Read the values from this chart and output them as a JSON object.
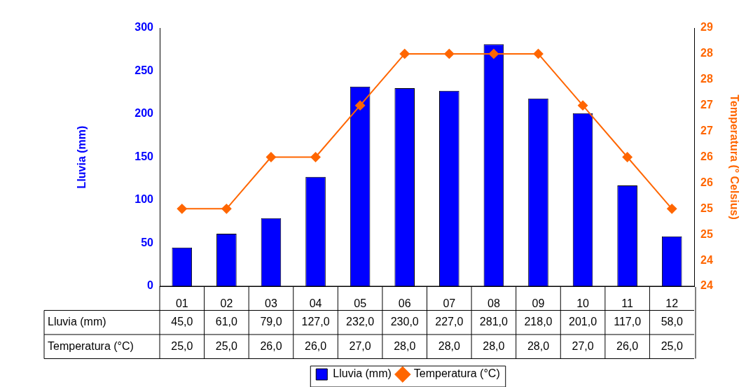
{
  "chart_data": {
    "type": "bar",
    "categories": [
      "01",
      "02",
      "03",
      "04",
      "05",
      "06",
      "07",
      "08",
      "09",
      "10",
      "11",
      "12"
    ],
    "ylabel": "Lluvia (mm)",
    "y2label": "Temperatura (° Celsius)",
    "ylim": [
      0,
      300
    ],
    "yticks": [
      0,
      50,
      100,
      150,
      200,
      250,
      300
    ],
    "y2lim": [
      23.5,
      28.5
    ],
    "y2ticks": [
      {
        "value": 23.5,
        "label": "24"
      },
      {
        "value": 24,
        "label": "24"
      },
      {
        "value": 24.5,
        "label": "25"
      },
      {
        "value": 25,
        "label": "25"
      },
      {
        "value": 25.5,
        "label": "26"
      },
      {
        "value": 26,
        "label": "26"
      },
      {
        "value": 26.5,
        "label": "27"
      },
      {
        "value": 27,
        "label": "27"
      },
      {
        "value": 27.5,
        "label": "28"
      },
      {
        "value": 28,
        "label": "28"
      },
      {
        "value": 28.5,
        "label": "29"
      }
    ],
    "legend": "bottom",
    "marker": "diamond",
    "series": [
      {
        "name": "Lluvia (mm)",
        "color": "#0000ff",
        "values": [
          45,
          61,
          79,
          127,
          232,
          230,
          227,
          281,
          218,
          201,
          117,
          58
        ],
        "value_labels": [
          "45,0",
          "61,0",
          "79,0",
          "127,0",
          "232,0",
          "230,0",
          "227,0",
          "281,0",
          "218,0",
          "201,0",
          "117,0",
          "58,0"
        ]
      },
      {
        "name": "Temperatura (°C)",
        "type": "line",
        "axis": "y2",
        "color": "#ff6600",
        "values": [
          25,
          25,
          26,
          26,
          27,
          28,
          28,
          28,
          28,
          27,
          26,
          25
        ],
        "value_labels": [
          "25,0",
          "25,0",
          "26,0",
          "26,0",
          "27,0",
          "28,0",
          "28,0",
          "28,0",
          "28,0",
          "27,0",
          "26,0",
          "25,0"
        ]
      }
    ]
  }
}
